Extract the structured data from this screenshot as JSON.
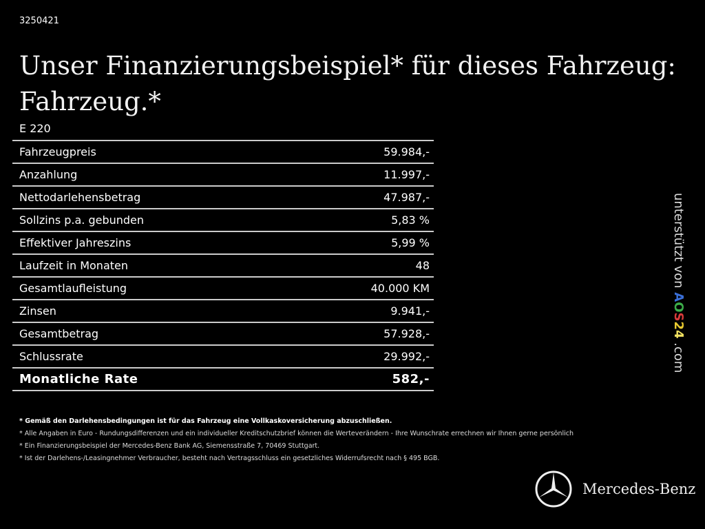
{
  "id": "3250421",
  "title": "Unser Finanzierungsbeispiel* für dieses Fahrzeug: Fahrzeug.*",
  "model": "E 220",
  "rows": [
    {
      "label": "Fahrzeugpreis",
      "value": "59.984,-"
    },
    {
      "label": "Anzahlung",
      "value": "11.997,-"
    },
    {
      "label": "Nettodarlehensbetrag",
      "value": "47.987,-"
    },
    {
      "label": "Sollzins p.a. gebunden",
      "value": "5,83 %"
    },
    {
      "label": "Effektiver Jahreszins",
      "value": "5,99 %"
    },
    {
      "label": "Laufzeit in Monaten",
      "value": "48"
    },
    {
      "label": "Gesamtlaufleistung",
      "value": "40.000 KM"
    },
    {
      "label": "Zinsen",
      "value": "9.941,-"
    },
    {
      "label": "Gesamtbetrag",
      "value": "57.928,-"
    },
    {
      "label": "Schlussrate",
      "value": "29.992,-"
    }
  ],
  "total": {
    "label": "Monatliche Rate",
    "value": "582,-"
  },
  "notes": [
    "* Gemäß den Darlehensbedingungen ist für das Fahrzeug eine Vollkaskoversicherung abzuschließen.",
    "* Alle Angaben in Euro - Rundungsdifferenzen und ein individueller Kreditschutzbrief können die Werteverändern - Ihre Wunschrate errechnen wir Ihnen gerne persönlich",
    "* Ein Finanzierungsbeispiel der Mercedes-Benz Bank AG, Siemensstraße 7, 70469 Stuttgart.",
    "* Ist der Darlehens-/Leasingnehmer Verbraucher, besteht nach Vertragsschluss ein gesetzliches Widerrufsrecht nach § 495 BGB."
  ],
  "support": {
    "prefix": "unterstützt von ",
    "logo": [
      "A",
      "O",
      "S",
      "2",
      "4"
    ],
    "logo_colors": [
      "#3a6fd8",
      "#3cae4a",
      "#d83a3a",
      "#e8c930",
      "#f0e060"
    ],
    "suffix": " .com"
  },
  "brand": {
    "name": "Mercedes-Benz",
    "icon": "mercedes-star-icon"
  }
}
